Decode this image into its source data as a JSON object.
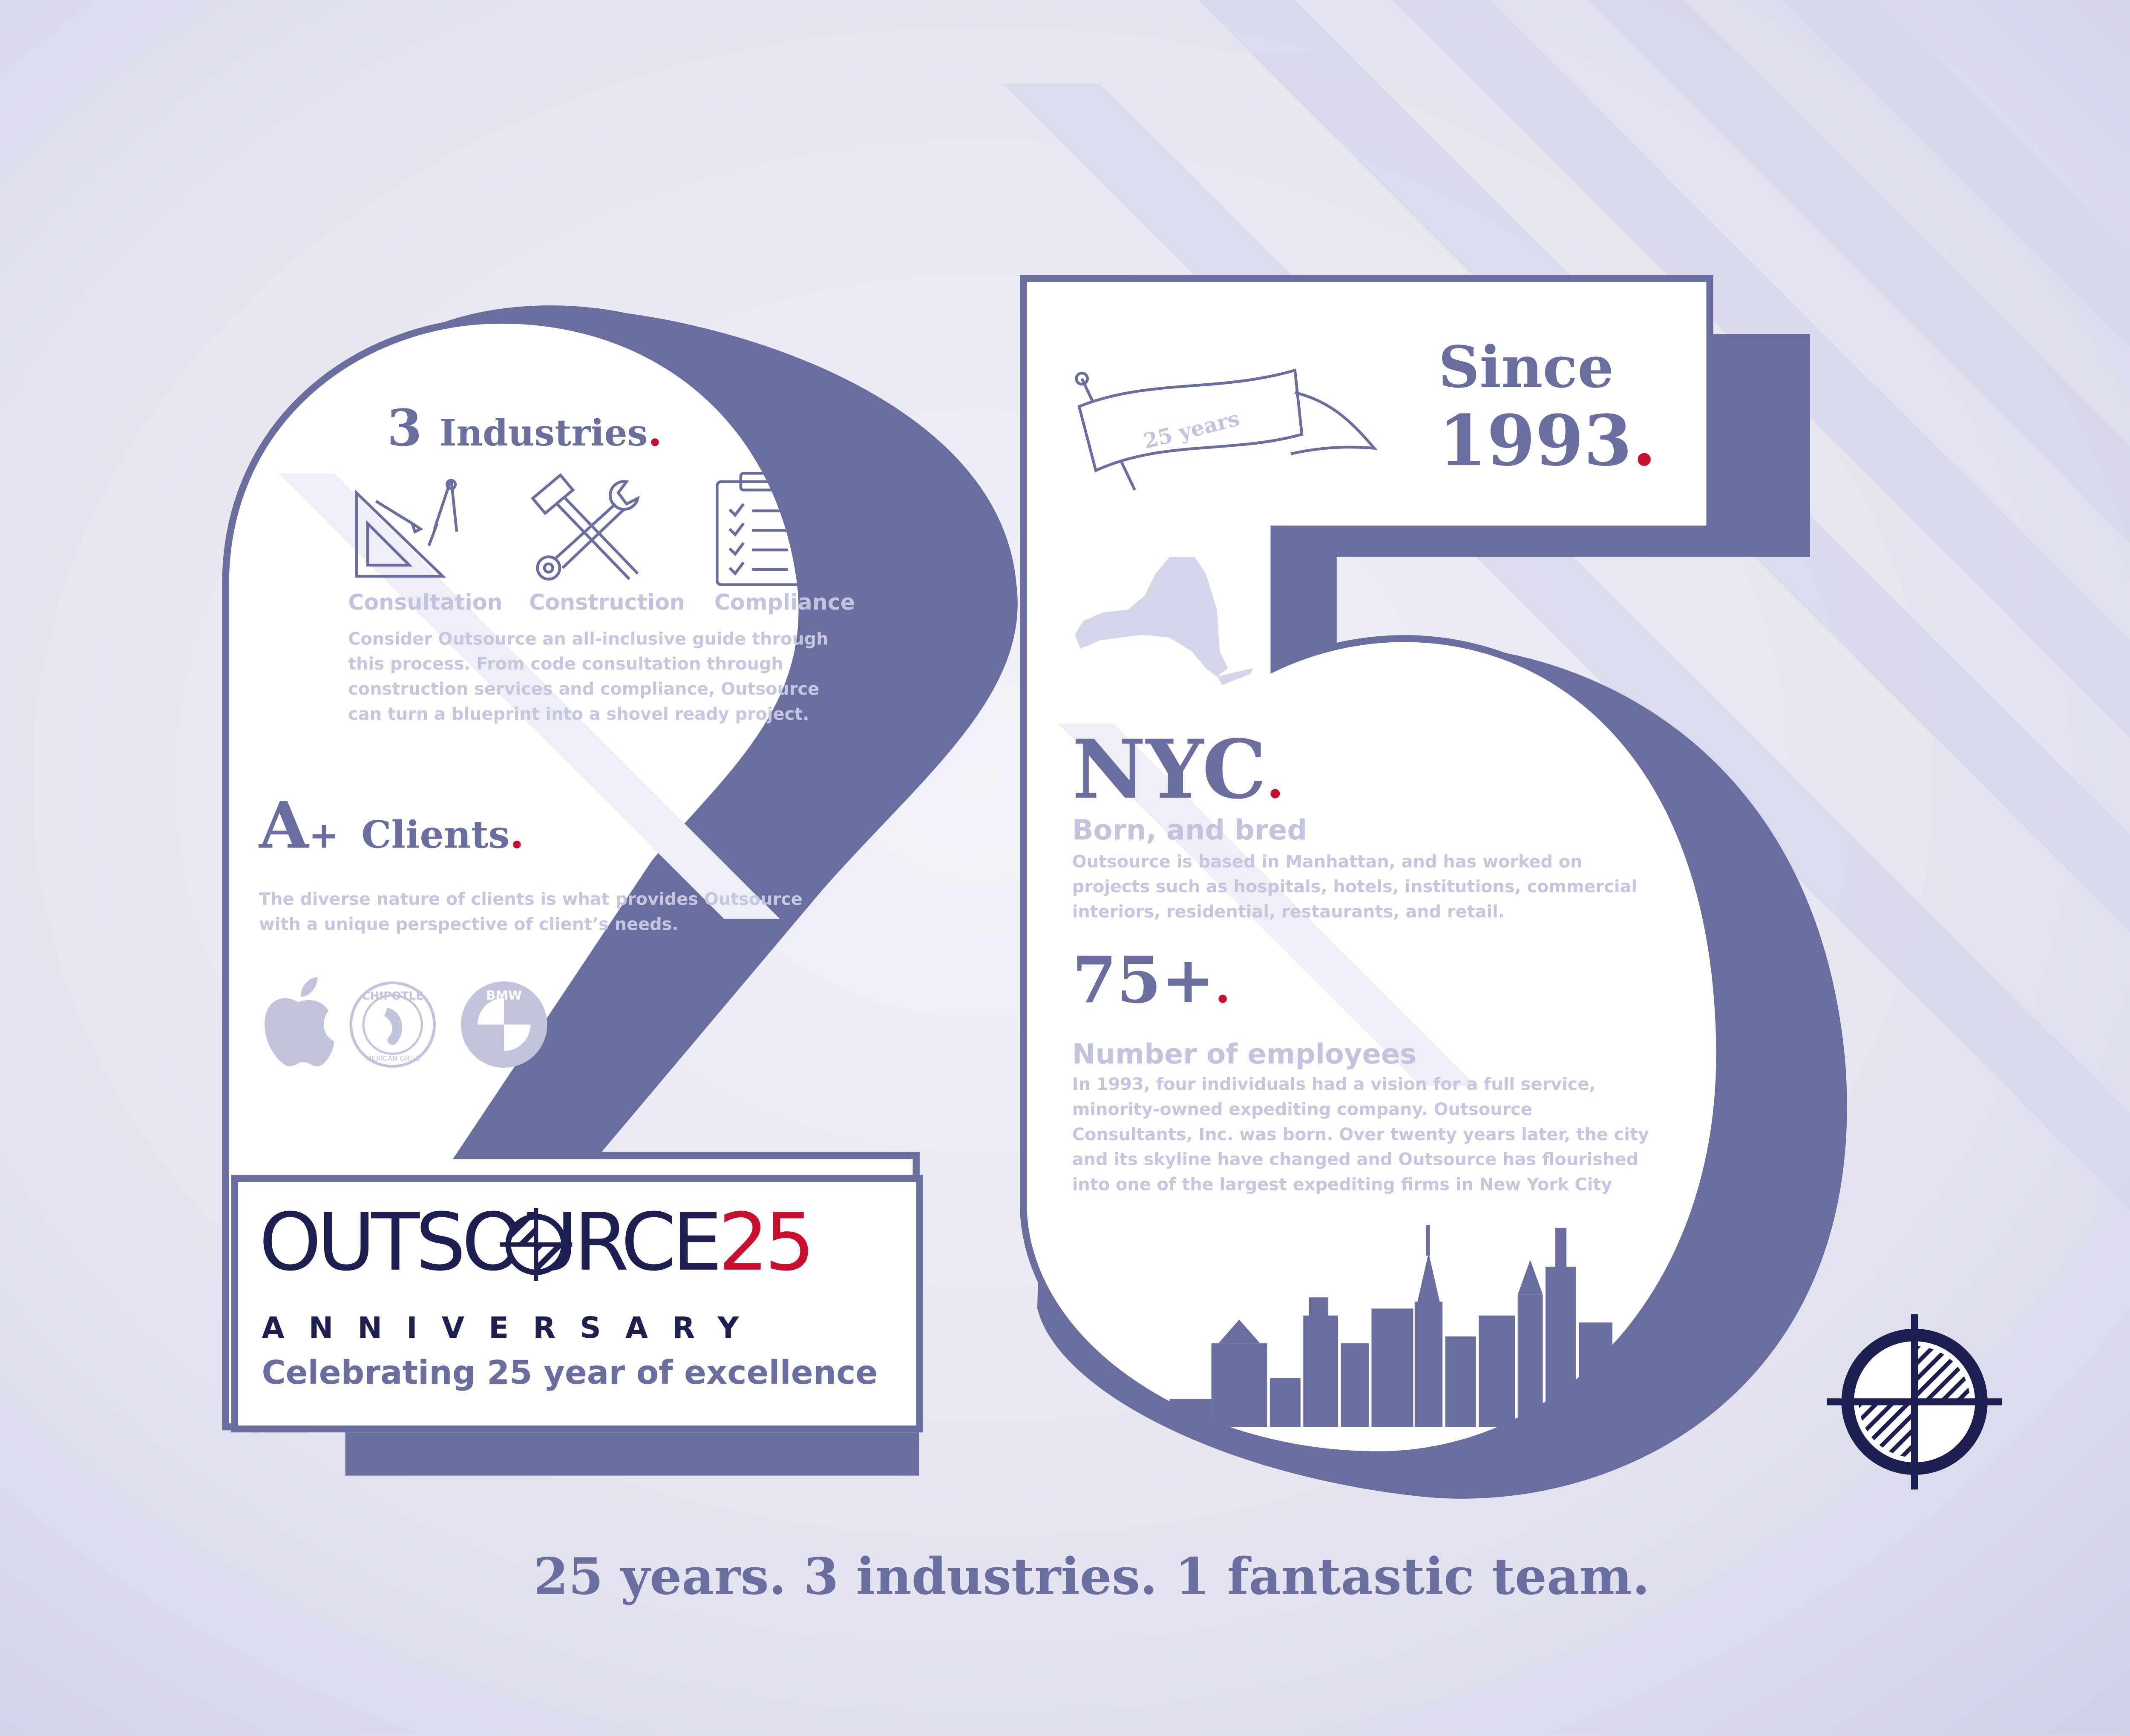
{
  "colors": {
    "navy": "#6a6e9f",
    "dark_navy": "#1c1f4f",
    "accent_red": "#c8102e",
    "light_text": "#c2c3dd",
    "background": "#e3e3f0"
  },
  "industries": {
    "count": "3",
    "title": "Industries",
    "items": [
      {
        "icon": "drafting-tools-icon",
        "label": "Consultation"
      },
      {
        "icon": "hammer-wrench-icon",
        "label": "Construction"
      },
      {
        "icon": "clipboard-checklist-icon",
        "label": "Compliance"
      }
    ],
    "description": [
      "Consider Outsource an all-inclusive guide through",
      "this process. From code consultation through",
      "construction services and compliance, Outsource",
      "can turn a blueprint into a shovel ready project."
    ]
  },
  "clients": {
    "grade": "A",
    "plus": "+",
    "title": "Clients",
    "description": [
      "The diverse nature of clients is what provides Outsource",
      "with a unique perspective of client’s needs."
    ],
    "logos": [
      {
        "icon": "apple-logo-icon",
        "name": "Apple"
      },
      {
        "icon": "chipotle-logo-icon",
        "name": "Chipotle",
        "ring_text": "CHIPOTLE",
        "ring_sub": "MEXICAN GRILL"
      },
      {
        "icon": "bmw-logo-icon",
        "name": "BMW",
        "ring_text": "BMW"
      }
    ]
  },
  "since": {
    "banner": "25 years",
    "line1": "Since",
    "line2": "1993"
  },
  "nyc": {
    "title": "NYC",
    "subtitle": "Born, and bred",
    "description": [
      "Outsource is based in Manhattan, and has worked on",
      "projects such as hospitals, hotels, institutions, commercial",
      "interiors, residential, restaurants, and retail."
    ]
  },
  "employees": {
    "count": "75+",
    "subtitle": "Number of employees",
    "description": [
      "In 1993, four individuals had a vision for a full service,",
      "minority-owned expediting company. Outsource",
      "Consultants, Inc. was born. Over twenty years later, the city",
      "and its skyline have changed and Outsource has flourished",
      "into one of the largest expediting firms in New York City"
    ]
  },
  "brand": {
    "logo_word": "OUTSOURCE",
    "logo_number": "25",
    "anniversary": "ANNIVERSARY",
    "celebrating": "Celebrating 25 year of excellence"
  },
  "tagline": "25 years. 3 industries. 1 fantastic team."
}
